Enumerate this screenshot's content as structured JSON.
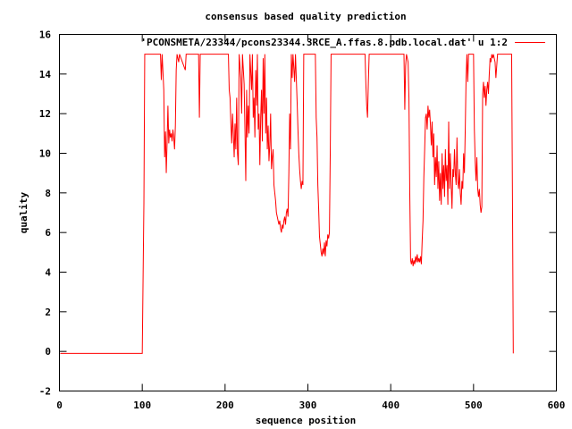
{
  "chart_data": {
    "type": "line",
    "title": "consensus based quality prediction",
    "xlabel": "sequence position",
    "ylabel": "quality",
    "xlim": [
      0,
      600
    ],
    "ylim": [
      -2,
      16
    ],
    "x_ticks": [
      0,
      100,
      200,
      300,
      400,
      500,
      600
    ],
    "y_ticks": [
      -2,
      0,
      2,
      4,
      6,
      8,
      10,
      12,
      14,
      16
    ],
    "grid": false,
    "legend_position": "top-right",
    "series": [
      {
        "name": "'PCONSMETA/23344/pcons23344.3RCE_A.ffas.8.pdb.local.dat' u 1:2",
        "color": "#ff0000",
        "points": [
          [
            1,
            -0.1
          ],
          [
            100,
            -0.1
          ],
          [
            102,
            7.5
          ],
          [
            103,
            15
          ],
          [
            122,
            15
          ],
          [
            123,
            13.7
          ],
          [
            124,
            15
          ],
          [
            126,
            13.2
          ],
          [
            127,
            9.8
          ],
          [
            128,
            11.1
          ],
          [
            129,
            9.0
          ],
          [
            130,
            10.6
          ],
          [
            131,
            12.4
          ],
          [
            132,
            10.5
          ],
          [
            133,
            11.2
          ],
          [
            134,
            10.8
          ],
          [
            135,
            11.0
          ],
          [
            136,
            10.6
          ],
          [
            137,
            11.2
          ],
          [
            138,
            10.8
          ],
          [
            139,
            10.2
          ],
          [
            140,
            11.4
          ],
          [
            141,
            14.2
          ],
          [
            142,
            15
          ],
          [
            144,
            14.6
          ],
          [
            145,
            15
          ],
          [
            152,
            14.2
          ],
          [
            153,
            15
          ],
          [
            168,
            15
          ],
          [
            169,
            11.8
          ],
          [
            170,
            15
          ],
          [
            204,
            15
          ],
          [
            205,
            13.2
          ],
          [
            206,
            12.8
          ],
          [
            207,
            11.5
          ],
          [
            208,
            10.5
          ],
          [
            209,
            12.0
          ],
          [
            210,
            11.0
          ],
          [
            211,
            9.8
          ],
          [
            212,
            11.5
          ],
          [
            213,
            10.2
          ],
          [
            214,
            12.8
          ],
          [
            215,
            10.0
          ],
          [
            216,
            9.4
          ],
          [
            217,
            15
          ],
          [
            219,
            13.8
          ],
          [
            220,
            12.0
          ],
          [
            221,
            15
          ],
          [
            223,
            13.5
          ],
          [
            224,
            11.2
          ],
          [
            225,
            8.6
          ],
          [
            226,
            13.2
          ],
          [
            227,
            10.8
          ],
          [
            228,
            12.4
          ],
          [
            229,
            11.0
          ],
          [
            230,
            15
          ],
          [
            232,
            13.2
          ],
          [
            233,
            15
          ],
          [
            234,
            11.8
          ],
          [
            235,
            12.8
          ],
          [
            236,
            10.8
          ],
          [
            237,
            14.2
          ],
          [
            238,
            12.4
          ],
          [
            239,
            15
          ],
          [
            240,
            11.2
          ],
          [
            241,
            12.0
          ],
          [
            242,
            9.4
          ],
          [
            243,
            11.8
          ],
          [
            244,
            13.2
          ],
          [
            245,
            10.6
          ],
          [
            246,
            14.8
          ],
          [
            247,
            12.0
          ],
          [
            248,
            15
          ],
          [
            249,
            11.0
          ],
          [
            250,
            12.8
          ],
          [
            251,
            10.2
          ],
          [
            252,
            11.4
          ],
          [
            253,
            9.6
          ],
          [
            254,
            10.4
          ],
          [
            255,
            12.0
          ],
          [
            256,
            9.2
          ],
          [
            257,
            9.8
          ],
          [
            258,
            10.2
          ],
          [
            259,
            8.4
          ],
          [
            260,
            8.0
          ],
          [
            261,
            7.6
          ],
          [
            262,
            7.0
          ],
          [
            263,
            6.8
          ],
          [
            264,
            6.6
          ],
          [
            265,
            6.4
          ],
          [
            266,
            6.6
          ],
          [
            267,
            6.2
          ],
          [
            268,
            6.0
          ],
          [
            269,
            6.4
          ],
          [
            270,
            6.2
          ],
          [
            271,
            6.6
          ],
          [
            272,
            6.8
          ],
          [
            273,
            6.4
          ],
          [
            274,
            7.0
          ],
          [
            275,
            7.2
          ],
          [
            276,
            6.8
          ],
          [
            277,
            9.0
          ],
          [
            278,
            12.0
          ],
          [
            279,
            10.2
          ],
          [
            280,
            15
          ],
          [
            281,
            13.8
          ],
          [
            282,
            15
          ],
          [
            284,
            13.6
          ],
          [
            285,
            15
          ],
          [
            287,
            12.6
          ],
          [
            288,
            11.2
          ],
          [
            289,
            10.0
          ],
          [
            290,
            9.2
          ],
          [
            291,
            8.6
          ],
          [
            292,
            8.2
          ],
          [
            293,
            8.6
          ],
          [
            294,
            8.4
          ],
          [
            295,
            15
          ],
          [
            309,
            15
          ],
          [
            310,
            11.8
          ],
          [
            311,
            10.8
          ],
          [
            312,
            8.4
          ],
          [
            313,
            7.2
          ],
          [
            314,
            5.8
          ],
          [
            315,
            5.4
          ],
          [
            316,
            5.0
          ],
          [
            317,
            4.8
          ],
          [
            318,
            5.2
          ],
          [
            319,
            4.9
          ],
          [
            320,
            5.5
          ],
          [
            321,
            4.8
          ],
          [
            322,
            5.6
          ],
          [
            323,
            5.3
          ],
          [
            324,
            5.9
          ],
          [
            325,
            5.7
          ],
          [
            326,
            6.0
          ],
          [
            327,
            10.0
          ],
          [
            328,
            15
          ],
          [
            369,
            15
          ],
          [
            370,
            13.5
          ],
          [
            371,
            12.4
          ],
          [
            372,
            11.8
          ],
          [
            373,
            13.6
          ],
          [
            374,
            15
          ],
          [
            416,
            15
          ],
          [
            417,
            12.2
          ],
          [
            418,
            14.4
          ],
          [
            419,
            15
          ],
          [
            421,
            14.6
          ],
          [
            422,
            12.8
          ],
          [
            423,
            8.0
          ],
          [
            424,
            4.6
          ],
          [
            425,
            4.4
          ],
          [
            426,
            4.7
          ],
          [
            427,
            4.3
          ],
          [
            428,
            4.6
          ],
          [
            429,
            4.4
          ],
          [
            430,
            4.8
          ],
          [
            431,
            4.5
          ],
          [
            432,
            4.9
          ],
          [
            433,
            4.5
          ],
          [
            434,
            4.7
          ],
          [
            435,
            4.5
          ],
          [
            436,
            4.8
          ],
          [
            437,
            4.4
          ],
          [
            438,
            5.6
          ],
          [
            439,
            6.6
          ],
          [
            440,
            8.8
          ],
          [
            441,
            10.2
          ],
          [
            442,
            11.8
          ],
          [
            443,
            12.0
          ],
          [
            444,
            11.2
          ],
          [
            445,
            12.4
          ],
          [
            446,
            11.8
          ],
          [
            447,
            12.2
          ],
          [
            448,
            11.4
          ],
          [
            449,
            10.4
          ],
          [
            450,
            11.6
          ],
          [
            451,
            9.8
          ],
          [
            452,
            11.0
          ],
          [
            453,
            8.4
          ],
          [
            454,
            9.8
          ],
          [
            455,
            8.8
          ],
          [
            456,
            10.4
          ],
          [
            457,
            8.2
          ],
          [
            458,
            9.6
          ],
          [
            459,
            7.6
          ],
          [
            460,
            9.0
          ],
          [
            461,
            7.4
          ],
          [
            462,
            10.0
          ],
          [
            463,
            8.2
          ],
          [
            464,
            9.4
          ],
          [
            465,
            7.8
          ],
          [
            466,
            10.2
          ],
          [
            467,
            8.6
          ],
          [
            468,
            9.4
          ],
          [
            469,
            7.4
          ],
          [
            470,
            11.6
          ],
          [
            471,
            8.2
          ],
          [
            472,
            10.0
          ],
          [
            473,
            8.4
          ],
          [
            474,
            7.2
          ],
          [
            475,
            9.2
          ],
          [
            476,
            8.8
          ],
          [
            477,
            10.2
          ],
          [
            478,
            9.0
          ],
          [
            479,
            8.4
          ],
          [
            480,
            10.8
          ],
          [
            481,
            8.6
          ],
          [
            482,
            8.2
          ],
          [
            483,
            9.2
          ],
          [
            484,
            8.0
          ],
          [
            485,
            7.4
          ],
          [
            486,
            8.6
          ],
          [
            487,
            8.2
          ],
          [
            488,
            10.0
          ],
          [
            489,
            9.0
          ],
          [
            490,
            11.2
          ],
          [
            491,
            13.8
          ],
          [
            492,
            15
          ],
          [
            493,
            13.6
          ],
          [
            494,
            15
          ],
          [
            500,
            15
          ],
          [
            501,
            11.2
          ],
          [
            502,
            9.6
          ],
          [
            503,
            8.6
          ],
          [
            504,
            9.8
          ],
          [
            505,
            8.2
          ],
          [
            506,
            7.8
          ],
          [
            507,
            8.2
          ],
          [
            508,
            7.4
          ],
          [
            509,
            7.0
          ],
          [
            510,
            7.3
          ],
          [
            511,
            13.0
          ],
          [
            512,
            13.6
          ],
          [
            513,
            12.8
          ],
          [
            514,
            13.4
          ],
          [
            515,
            12.4
          ],
          [
            516,
            13.2
          ],
          [
            517,
            13.6
          ],
          [
            518,
            13.0
          ],
          [
            519,
            14.0
          ],
          [
            520,
            14.8
          ],
          [
            521,
            14.6
          ],
          [
            522,
            15
          ],
          [
            523,
            14.8
          ],
          [
            524,
            15
          ],
          [
            526,
            14.6
          ],
          [
            527,
            13.8
          ],
          [
            528,
            14.4
          ],
          [
            529,
            15
          ],
          [
            546,
            15
          ],
          [
            547,
            7.8
          ],
          [
            548,
            -0.1
          ]
        ]
      }
    ]
  }
}
